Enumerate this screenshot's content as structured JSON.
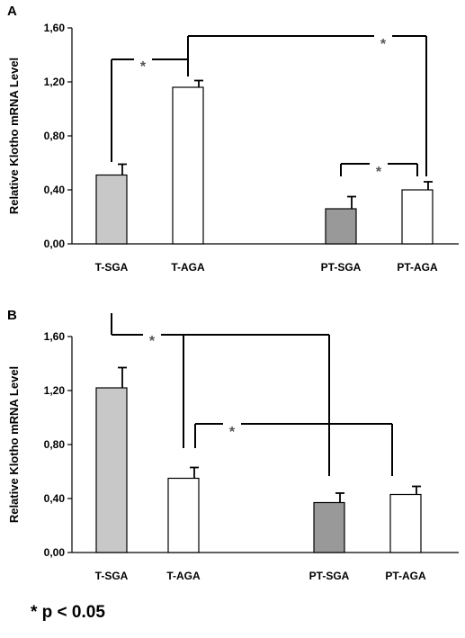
{
  "footnote": "* p < 0.05",
  "colors": {
    "bar_fill": [
      "#c8c8c8",
      "#ffffff",
      "#999999",
      "#ffffff"
    ],
    "bar_stroke": "#000000",
    "bracket": "#000000",
    "star": "#555555"
  },
  "chart_data": [
    {
      "type": "bar",
      "panel": "A",
      "categories": [
        "T-SGA",
        "T-AGA",
        "PT-SGA",
        "PT-AGA"
      ],
      "values": [
        0.51,
        1.16,
        0.26,
        0.4
      ],
      "errors": [
        0.08,
        0.05,
        0.09,
        0.06
      ],
      "ylabel": "Relative Klotho mRNA Level",
      "xlabel": "",
      "ylim": [
        0,
        1.6
      ],
      "yticks": [
        "0,00",
        "0,40",
        "0,80",
        "1,20",
        "1,60"
      ],
      "significance": [
        {
          "between": [
            "T-SGA",
            "T-AGA"
          ],
          "label": "*"
        },
        {
          "between": [
            "T-AGA",
            "PT-AGA"
          ],
          "label": "*"
        },
        {
          "between": [
            "PT-SGA",
            "PT-AGA"
          ],
          "label": "*"
        }
      ]
    },
    {
      "type": "bar",
      "panel": "B",
      "categories": [
        "T-SGA",
        "T-AGA",
        "PT-SGA",
        "PT-AGA"
      ],
      "values": [
        1.22,
        0.55,
        0.37,
        0.43
      ],
      "errors": [
        0.15,
        0.08,
        0.07,
        0.06
      ],
      "ylabel": "Relative Klotho mRNA Level",
      "xlabel": "",
      "ylim": [
        0,
        1.6
      ],
      "yticks": [
        "0,00",
        "0,40",
        "0,80",
        "1,20",
        "1,60"
      ],
      "significance": [
        {
          "between": [
            "T-SGA",
            "T-AGA",
            "PT-SGA"
          ],
          "label": "*"
        },
        {
          "between": [
            "T-AGA",
            "PT-SGA",
            "PT-AGA"
          ],
          "label": "*"
        }
      ]
    }
  ]
}
